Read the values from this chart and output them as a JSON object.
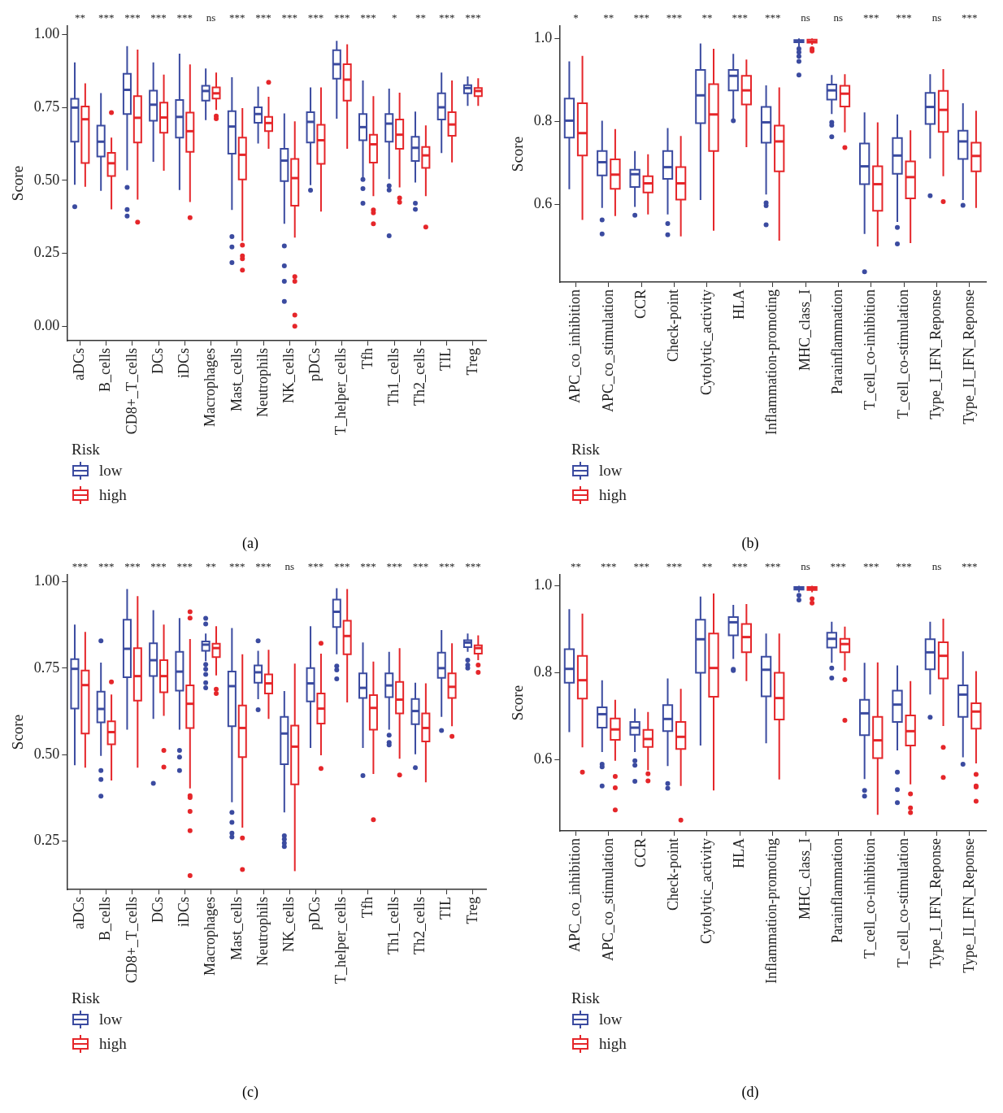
{
  "chart_data": [
    {
      "type": "box",
      "categories": [
        "aDCs",
        "B_cells",
        "CD8+_T_cells",
        "DCs",
        "iDCs",
        "Macrophages",
        "Mast_cells",
        "Neutrophils",
        "NK_cells",
        "pDCs",
        "T_helper_cells",
        "Tfh",
        "Th1_cells",
        "Th2_cells",
        "TIL",
        "Treg"
      ],
      "ylabel": "Score",
      "ylim": [
        -0.05,
        1.03
      ],
      "yticks": [
        {
          "value": 0,
          "label": "0.00"
        },
        0.25,
        {
          "value": 0.5,
          "label": "0.50"
        },
        0.75,
        {
          "value": 1,
          "label": "1.00"
        }
      ],
      "legend": "bottom left",
      "legend_title": "Risk",
      "series": [
        {
          "name": "low",
          "color": "#3b4ba0",
          "boxes": [
            {
              "low": 0.485,
              "q1": 0.633,
              "median": 0.75,
              "q3": 0.78,
              "high": 0.905,
              "outliers": [
                0.41
              ]
            },
            {
              "low": 0.464,
              "q1": 0.582,
              "median": 0.633,
              "q3": 0.688,
              "high": 0.8
            },
            {
              "low": 0.535,
              "q1": 0.728,
              "median": 0.811,
              "q3": 0.866,
              "high": 0.961,
              "outliers": [
                0.476,
                0.4,
                0.378
              ]
            },
            {
              "low": 0.564,
              "q1": 0.705,
              "median": 0.76,
              "q3": 0.808,
              "high": 0.905
            },
            {
              "low": 0.467,
              "q1": 0.647,
              "median": 0.718,
              "q3": 0.776,
              "high": 0.935
            },
            {
              "low": 0.707,
              "q1": 0.774,
              "median": 0.807,
              "q3": 0.825,
              "high": 0.884
            },
            {
              "low": 0.399,
              "q1": 0.592,
              "median": 0.685,
              "q3": 0.738,
              "high": 0.854,
              "outliers": [
                0.307,
                0.272,
                0.218
              ]
            },
            {
              "low": 0.627,
              "q1": 0.698,
              "median": 0.728,
              "q3": 0.751,
              "high": 0.822
            },
            {
              "low": 0.351,
              "q1": 0.498,
              "median": 0.568,
              "q3": 0.609,
              "high": 0.73,
              "outliers": [
                0.275,
                0.207,
                0.154,
                0.085
              ]
            },
            {
              "low": 0.484,
              "q1": 0.63,
              "median": 0.701,
              "q3": 0.734,
              "high": 0.819,
              "outliers": [
                0.466
              ]
            },
            {
              "low": 0.712,
              "q1": 0.849,
              "median": 0.899,
              "q3": 0.947,
              "high": 0.979
            },
            {
              "low": 0.511,
              "q1": 0.638,
              "median": 0.683,
              "q3": 0.728,
              "high": 0.843,
              "outliers": [
                0.503,
                0.472,
                0.422
              ]
            },
            {
              "low": 0.505,
              "q1": 0.633,
              "median": 0.695,
              "q3": 0.728,
              "high": 0.815,
              "outliers": [
                0.482,
                0.467,
                0.31
              ]
            },
            {
              "low": 0.493,
              "q1": 0.567,
              "median": 0.612,
              "q3": 0.65,
              "high": 0.736,
              "outliers": [
                0.422,
                0.401
              ]
            },
            {
              "low": 0.594,
              "q1": 0.709,
              "median": 0.751,
              "q3": 0.799,
              "high": 0.87
            },
            {
              "low": 0.756,
              "q1": 0.799,
              "median": 0.817,
              "q3": 0.827,
              "high": 0.857
            }
          ]
        },
        {
          "name": "high",
          "color": "#e5262a",
          "boxes": [
            {
              "low": 0.478,
              "q1": 0.56,
              "median": 0.71,
              "q3": 0.754,
              "high": 0.833
            },
            {
              "low": 0.401,
              "q1": 0.515,
              "median": 0.559,
              "q3": 0.595,
              "high": 0.647,
              "outliers": [
                0.733
              ]
            },
            {
              "low": 0.434,
              "q1": 0.63,
              "median": 0.715,
              "q3": 0.789,
              "high": 0.949,
              "outliers": [
                0.357
              ]
            },
            {
              "low": 0.533,
              "q1": 0.664,
              "median": 0.716,
              "q3": 0.767,
              "high": 0.863
            },
            {
              "low": 0.426,
              "q1": 0.598,
              "median": 0.669,
              "q3": 0.733,
              "high": 0.898,
              "outliers": [
                0.372
              ]
            },
            {
              "low": 0.742,
              "q1": 0.781,
              "median": 0.799,
              "q3": 0.819,
              "high": 0.87,
              "outliers": [
                0.721,
                0.712
              ]
            },
            {
              "low": 0.292,
              "q1": 0.503,
              "median": 0.588,
              "q3": 0.647,
              "high": 0.748,
              "outliers": [
                0.278,
                0.241,
                0.231,
                0.192
              ]
            },
            {
              "low": 0.609,
              "q1": 0.669,
              "median": 0.697,
              "q3": 0.718,
              "high": 0.787,
              "outliers": [
                0.837
              ]
            },
            {
              "low": 0.304,
              "q1": 0.413,
              "median": 0.508,
              "q3": 0.574,
              "high": 0.703,
              "outliers": [
                0.17,
                0.154,
                0.038,
                0
              ]
            },
            {
              "low": 0.393,
              "q1": 0.557,
              "median": 0.638,
              "q3": 0.691,
              "high": 0.819
            },
            {
              "low": 0.609,
              "q1": 0.774,
              "median": 0.846,
              "q3": 0.899,
              "high": 0.967
            },
            {
              "low": 0.446,
              "q1": 0.561,
              "median": 0.624,
              "q3": 0.657,
              "high": 0.789,
              "outliers": [
                0.399,
                0.389,
                0.351
              ]
            },
            {
              "low": 0.476,
              "q1": 0.609,
              "median": 0.657,
              "q3": 0.709,
              "high": 0.801,
              "outliers": [
                0.44,
                0.425
              ]
            },
            {
              "low": 0.446,
              "q1": 0.543,
              "median": 0.586,
              "q3": 0.615,
              "high": 0.689,
              "outliers": [
                0.34
              ]
            },
            {
              "low": 0.562,
              "q1": 0.653,
              "median": 0.692,
              "q3": 0.734,
              "high": 0.843
            },
            {
              "low": 0.756,
              "q1": 0.789,
              "median": 0.807,
              "q3": 0.817,
              "high": 0.851
            }
          ]
        }
      ],
      "annotations": [
        "** *** *** *** *** ns *** *** *** *** *** *** * ** *** ***",
        "(a)"
      ]
    },
    {
      "type": "box",
      "categories": [
        "APC_co_inhibition",
        "APC_co_stimulation",
        "CCR",
        "Check-point",
        "Cytolytic_activity",
        "HLA",
        "Inflammation-promoting",
        "MHC_class_I",
        "Parainflammation",
        "T_cell_co-inhibition",
        "T_cell_co-stimulation",
        "Type_I_IFN_Reponse",
        "Type_II_IFN_Reponse"
      ],
      "ylabel": "Score",
      "ylim": [
        0.413,
        1.03
      ],
      "yticks": [
        0.6,
        0.8,
        {
          "value": 1,
          "label": "1.0"
        }
      ],
      "legend": "bottom left",
      "legend_title": "Risk",
      "series": [
        {
          "name": "low",
          "color": "#3b4ba0",
          "boxes": [
            {
              "low": 0.637,
              "q1": 0.761,
              "median": 0.802,
              "q3": 0.855,
              "high": 0.945
            },
            {
              "low": 0.592,
              "q1": 0.67,
              "median": 0.702,
              "q3": 0.729,
              "high": 0.802,
              "outliers": [
                0.563,
                0.529
              ]
            },
            {
              "low": 0.594,
              "q1": 0.642,
              "median": 0.673,
              "q3": 0.684,
              "high": 0.729,
              "outliers": [
                0.574
              ]
            },
            {
              "low": 0.576,
              "q1": 0.662,
              "median": 0.69,
              "q3": 0.729,
              "high": 0.784,
              "outliers": [
                0.554,
                0.527
              ]
            },
            {
              "low": 0.611,
              "q1": 0.796,
              "median": 0.863,
              "q3": 0.924,
              "high": 0.988
            },
            {
              "low": 0.806,
              "q1": 0.875,
              "median": 0.91,
              "q3": 0.924,
              "high": 0.963,
              "outliers": [
                0.802
              ]
            },
            {
              "low": 0.624,
              "q1": 0.749,
              "median": 0.798,
              "q3": 0.835,
              "high": 0.887,
              "outliers": [
                0.604,
                0.597,
                0.551
              ]
            },
            {
              "low": 0.98,
              "q1": 0.991,
              "median": 0.993,
              "q3": 0.996,
              "high": 1,
              "outliers": [
                0.975,
                0.967,
                0.957,
                0.945,
                0.912
              ]
            },
            {
              "low": 0.818,
              "q1": 0.853,
              "median": 0.875,
              "q3": 0.889,
              "high": 0.912,
              "outliers": [
                0.798,
                0.791,
                0.763
              ]
            },
            {
              "low": 0.529,
              "q1": 0.649,
              "median": 0.692,
              "q3": 0.747,
              "high": 0.822,
              "outliers": [
                0.438
              ]
            },
            {
              "low": 0.558,
              "q1": 0.674,
              "median": 0.718,
              "q3": 0.76,
              "high": 0.817,
              "outliers": [
                0.545,
                0.505
              ]
            },
            {
              "low": 0.711,
              "q1": 0.794,
              "median": 0.835,
              "q3": 0.869,
              "high": 0.914,
              "outliers": [
                0.621
              ]
            },
            {
              "low": 0.611,
              "q1": 0.71,
              "median": 0.752,
              "q3": 0.778,
              "high": 0.844,
              "outliers": [
                0.598
              ]
            }
          ]
        },
        {
          "name": "high",
          "color": "#e5262a",
          "boxes": [
            {
              "low": 0.563,
              "q1": 0.718,
              "median": 0.772,
              "q3": 0.844,
              "high": 0.958
            },
            {
              "low": 0.572,
              "q1": 0.638,
              "median": 0.672,
              "q3": 0.709,
              "high": 0.782
            },
            {
              "low": 0.576,
              "q1": 0.629,
              "median": 0.651,
              "q3": 0.668,
              "high": 0.721
            },
            {
              "low": 0.523,
              "q1": 0.612,
              "median": 0.651,
              "q3": 0.69,
              "high": 0.765
            },
            {
              "low": 0.537,
              "q1": 0.729,
              "median": 0.817,
              "q3": 0.89,
              "high": 0.975
            },
            {
              "low": 0.738,
              "q1": 0.841,
              "median": 0.875,
              "q3": 0.91,
              "high": 0.949
            },
            {
              "low": 0.513,
              "q1": 0.68,
              "median": 0.752,
              "q3": 0.79,
              "high": 0.882
            },
            {
              "low": 0.985,
              "q1": 0.99,
              "median": 0.992,
              "q3": 0.997,
              "high": 1,
              "outliers": [
                0.975,
                0.97
              ]
            },
            {
              "low": 0.774,
              "q1": 0.836,
              "median": 0.867,
              "q3": 0.886,
              "high": 0.914,
              "outliers": [
                0.737
              ]
            },
            {
              "low": 0.499,
              "q1": 0.585,
              "median": 0.649,
              "q3": 0.692,
              "high": 0.798
            },
            {
              "low": 0.507,
              "q1": 0.615,
              "median": 0.666,
              "q3": 0.704,
              "high": 0.779
            },
            {
              "low": 0.668,
              "q1": 0.775,
              "median": 0.828,
              "q3": 0.874,
              "high": 0.926,
              "outliers": [
                0.607
              ]
            },
            {
              "low": 0.592,
              "q1": 0.68,
              "median": 0.717,
              "q3": 0.749,
              "high": 0.826
            }
          ]
        }
      ],
      "annotations": [
        "* ** *** *** ** *** *** ns ns *** *** ns ***",
        "(b)"
      ]
    },
    {
      "type": "box",
      "categories": [
        "aDCs",
        "B_cells",
        "CD8+_T_cells",
        "DCs",
        "iDCs",
        "Macrophages",
        "Mast_cells",
        "Neutrophils",
        "NK_cells",
        "pDCs",
        "T_helper_cells",
        "Tfh",
        "Th1_cells",
        "Th2_cells",
        "TIL",
        "Treg"
      ],
      "ylabel": "Score",
      "ylim": [
        0.11,
        1.02
      ],
      "yticks": [
        0.25,
        {
          "value": 0.5,
          "label": "0.50"
        },
        0.75,
        {
          "value": 1,
          "label": "1.00"
        }
      ],
      "legend": "bottom left",
      "legend_title": "Risk",
      "series": [
        {
          "name": "low",
          "color": "#3b4ba0",
          "boxes": [
            {
              "low": 0.469,
              "q1": 0.633,
              "median": 0.748,
              "q3": 0.776,
              "high": 0.876
            },
            {
              "low": 0.496,
              "q1": 0.593,
              "median": 0.632,
              "q3": 0.682,
              "high": 0.766,
              "outliers": [
                0.829,
                0.454,
                0.428,
                0.38
              ]
            },
            {
              "low": 0.572,
              "q1": 0.724,
              "median": 0.806,
              "q3": 0.89,
              "high": 0.979
            },
            {
              "low": 0.603,
              "q1": 0.727,
              "median": 0.773,
              "q3": 0.822,
              "high": 0.918,
              "outliers": [
                0.417
              ]
            },
            {
              "low": 0.572,
              "q1": 0.685,
              "median": 0.74,
              "q3": 0.797,
              "high": 0.895,
              "outliers": [
                0.512,
                0.493,
                0.454
              ]
            },
            {
              "low": 0.77,
              "q1": 0.8,
              "median": 0.818,
              "q3": 0.827,
              "high": 0.85,
              "outliers": [
                0.894,
                0.878,
                0.761,
                0.747,
                0.732,
                0.708,
                0.693
              ]
            },
            {
              "low": 0.362,
              "q1": 0.582,
              "median": 0.698,
              "q3": 0.74,
              "high": 0.866,
              "outliers": [
                0.333,
                0.304,
                0.273,
                0.262
              ]
            },
            {
              "low": 0.66,
              "q1": 0.708,
              "median": 0.738,
              "q3": 0.758,
              "high": 0.8,
              "outliers": [
                0.829,
                0.63
              ]
            },
            {
              "low": 0.333,
              "q1": 0.472,
              "median": 0.561,
              "q3": 0.609,
              "high": 0.684,
              "outliers": [
                0.265,
                0.255,
                0.244,
                0.234
              ]
            },
            {
              "low": 0.519,
              "q1": 0.654,
              "median": 0.706,
              "q3": 0.75,
              "high": 0.871
            },
            {
              "low": 0.79,
              "q1": 0.869,
              "median": 0.913,
              "q3": 0.948,
              "high": 0.981,
              "outliers": [
                0.756,
                0.745,
                0.719
              ]
            },
            {
              "low": 0.519,
              "q1": 0.664,
              "median": 0.693,
              "q3": 0.735,
              "high": 0.824,
              "outliers": [
                0.439
              ]
            },
            {
              "low": 0.572,
              "q1": 0.666,
              "median": 0.7,
              "q3": 0.735,
              "high": 0.797,
              "outliers": [
                0.556,
                0.535,
                0.528
              ]
            },
            {
              "low": 0.501,
              "q1": 0.588,
              "median": 0.626,
              "q3": 0.661,
              "high": 0.708,
              "outliers": [
                0.462
              ]
            },
            {
              "low": 0.609,
              "q1": 0.722,
              "median": 0.75,
              "q3": 0.795,
              "high": 0.86,
              "outliers": [
                0.57
              ]
            },
            {
              "low": 0.797,
              "q1": 0.811,
              "median": 0.824,
              "q3": 0.831,
              "high": 0.85,
              "outliers": [
                0.773,
                0.759,
                0.75
              ]
            }
          ]
        },
        {
          "name": "high",
          "color": "#e5262a",
          "boxes": [
            {
              "low": 0.462,
              "q1": 0.561,
              "median": 0.701,
              "q3": 0.743,
              "high": 0.855
            },
            {
              "low": 0.425,
              "q1": 0.53,
              "median": 0.565,
              "q3": 0.596,
              "high": 0.674,
              "outliers": [
                0.71
              ]
            },
            {
              "low": 0.462,
              "q1": 0.656,
              "median": 0.727,
              "q3": 0.808,
              "high": 0.958
            },
            {
              "low": 0.612,
              "q1": 0.68,
              "median": 0.727,
              "q3": 0.773,
              "high": 0.876,
              "outliers": [
                0.512,
                0.464
              ]
            },
            {
              "low": 0.402,
              "q1": 0.577,
              "median": 0.647,
              "q3": 0.7,
              "high": 0.834,
              "outliers": [
                0.913,
                0.895,
                0.381,
                0.376,
                0.336,
                0.28,
                0.15
              ]
            },
            {
              "low": 0.729,
              "q1": 0.782,
              "median": 0.808,
              "q3": 0.821,
              "high": 0.871,
              "outliers": [
                0.689,
                0.677
              ]
            },
            {
              "low": 0.289,
              "q1": 0.493,
              "median": 0.577,
              "q3": 0.642,
              "high": 0.79,
              "outliers": [
                0.259,
                0.168
              ]
            },
            {
              "low": 0.603,
              "q1": 0.677,
              "median": 0.706,
              "q3": 0.732,
              "high": 0.803
            },
            {
              "low": 0.163,
              "q1": 0.414,
              "median": 0.523,
              "q3": 0.584,
              "high": 0.763
            },
            {
              "low": 0.498,
              "q1": 0.59,
              "median": 0.633,
              "q3": 0.677,
              "high": 0.792,
              "outliers": [
                0.822,
                0.46
              ]
            },
            {
              "low": 0.651,
              "q1": 0.79,
              "median": 0.843,
              "q3": 0.887,
              "high": 0.979
            },
            {
              "low": 0.444,
              "q1": 0.572,
              "median": 0.635,
              "q3": 0.672,
              "high": 0.769,
              "outliers": [
                0.312
              ]
            },
            {
              "low": 0.488,
              "q1": 0.619,
              "median": 0.659,
              "q3": 0.71,
              "high": 0.808,
              "outliers": [
                0.441
              ]
            },
            {
              "low": 0.42,
              "q1": 0.538,
              "median": 0.577,
              "q3": 0.619,
              "high": 0.706
            },
            {
              "low": 0.582,
              "q1": 0.664,
              "median": 0.696,
              "q3": 0.735,
              "high": 0.822,
              "outliers": [
                0.553
              ]
            },
            {
              "low": 0.773,
              "q1": 0.792,
              "median": 0.808,
              "q3": 0.816,
              "high": 0.845,
              "outliers": [
                0.759,
                0.738
              ]
            }
          ]
        }
      ],
      "annotations": [
        "*** *** *** *** *** ** *** *** ns *** *** *** *** *** *** ***",
        "(c)"
      ]
    },
    {
      "type": "box",
      "categories": [
        "APC_co_inhibition",
        "APC_co_stimulation",
        "CCR",
        "Check-point",
        "Cytolytic_activity",
        "HLA",
        "Inflammation-promoting",
        "MHC_class_I",
        "Parainflammation",
        "T_cell_co-inhibition",
        "T_cell_co-stimulation",
        "Type_I_IFN_Reponse",
        "Type_II_IFN_Reponse"
      ],
      "ylabel": "Score",
      "ylim": [
        0.437,
        1.025
      ],
      "yticks": [
        0.6,
        0.8,
        {
          "value": 1,
          "label": "1.0"
        }
      ],
      "legend": "bottom left",
      "legend_title": "Risk",
      "series": [
        {
          "name": "low",
          "color": "#3b4ba0",
          "boxes": [
            {
              "low": 0.664,
              "q1": 0.777,
              "median": 0.809,
              "q3": 0.854,
              "high": 0.946
            },
            {
              "low": 0.618,
              "q1": 0.674,
              "median": 0.705,
              "q3": 0.721,
              "high": 0.783,
              "outliers": [
                0.59,
                0.584,
                0.54
              ]
            },
            {
              "low": 0.618,
              "q1": 0.658,
              "median": 0.674,
              "q3": 0.687,
              "high": 0.718,
              "outliers": [
                0.598,
                0.588,
                0.551
              ]
            },
            {
              "low": 0.586,
              "q1": 0.666,
              "median": 0.694,
              "q3": 0.726,
              "high": 0.787,
              "outliers": [
                0.546,
                0.535
              ]
            },
            {
              "low": 0.633,
              "q1": 0.8,
              "median": 0.877,
              "q3": 0.922,
              "high": 0.975
            },
            {
              "low": 0.832,
              "q1": 0.886,
              "median": 0.916,
              "q3": 0.928,
              "high": 0.956,
              "outliers": [
                0.808,
                0.805
              ]
            },
            {
              "low": 0.638,
              "q1": 0.746,
              "median": 0.807,
              "q3": 0.837,
              "high": 0.89
            },
            {
              "low": 0.985,
              "q1": 0.991,
              "median": 0.994,
              "q3": 0.997,
              "high": 1,
              "outliers": [
                0.978,
                0.967
              ]
            },
            {
              "low": 0.823,
              "q1": 0.858,
              "median": 0.878,
              "q3": 0.892,
              "high": 0.917,
              "outliers": [
                0.811,
                0.788
              ]
            },
            {
              "low": 0.556,
              "q1": 0.657,
              "median": 0.707,
              "q3": 0.738,
              "high": 0.823,
              "outliers": [
                0.53,
                0.517
              ]
            },
            {
              "low": 0.622,
              "q1": 0.687,
              "median": 0.727,
              "q3": 0.759,
              "high": 0.817,
              "outliers": [
                0.572,
                0.532,
                0.502
              ]
            },
            {
              "low": 0.75,
              "q1": 0.808,
              "median": 0.847,
              "q3": 0.877,
              "high": 0.917,
              "outliers": [
                0.698
              ]
            },
            {
              "low": 0.606,
              "q1": 0.699,
              "median": 0.75,
              "q3": 0.771,
              "high": 0.849,
              "outliers": [
                0.59
              ]
            }
          ]
        },
        {
          "name": "high",
          "color": "#e5262a",
          "boxes": [
            {
              "low": 0.629,
              "q1": 0.741,
              "median": 0.783,
              "q3": 0.839,
              "high": 0.936,
              "outliers": [
                0.572
              ]
            },
            {
              "low": 0.598,
              "q1": 0.646,
              "median": 0.67,
              "q3": 0.695,
              "high": 0.738,
              "outliers": [
                0.562,
                0.536,
                0.485
              ]
            },
            {
              "low": 0.576,
              "q1": 0.63,
              "median": 0.648,
              "q3": 0.669,
              "high": 0.71,
              "outliers": [
                0.568,
                0.552
              ]
            },
            {
              "low": 0.54,
              "q1": 0.625,
              "median": 0.653,
              "q3": 0.687,
              "high": 0.763,
              "outliers": [
                0.462
              ]
            },
            {
              "low": 0.53,
              "q1": 0.745,
              "median": 0.811,
              "q3": 0.89,
              "high": 0.982
            },
            {
              "low": 0.781,
              "q1": 0.847,
              "median": 0.882,
              "q3": 0.912,
              "high": 0.958
            },
            {
              "low": 0.555,
              "q1": 0.693,
              "median": 0.742,
              "q3": 0.8,
              "high": 0.89
            },
            {
              "low": 0.985,
              "q1": 0.99,
              "median": 0.993,
              "q3": 0.997,
              "high": 1,
              "outliers": [
                0.97,
                0.96
              ]
            },
            {
              "low": 0.805,
              "q1": 0.847,
              "median": 0.866,
              "q3": 0.878,
              "high": 0.906,
              "outliers": [
                0.784,
                0.691
              ]
            },
            {
              "low": 0.474,
              "q1": 0.604,
              "median": 0.645,
              "q3": 0.699,
              "high": 0.824
            },
            {
              "low": 0.544,
              "q1": 0.633,
              "median": 0.666,
              "q3": 0.702,
              "high": 0.781,
              "outliers": [
                0.522,
                0.49,
                0.479
              ]
            },
            {
              "low": 0.678,
              "q1": 0.787,
              "median": 0.839,
              "q3": 0.87,
              "high": 0.924,
              "outliers": [
                0.629,
                0.56
              ]
            },
            {
              "low": 0.592,
              "q1": 0.672,
              "median": 0.711,
              "q3": 0.73,
              "high": 0.804,
              "outliers": [
                0.567,
                0.54,
                0.538,
                0.505
              ]
            }
          ]
        }
      ],
      "annotations": [
        "** *** *** *** ** *** *** ns *** *** *** ns ***",
        "(d)"
      ]
    }
  ]
}
